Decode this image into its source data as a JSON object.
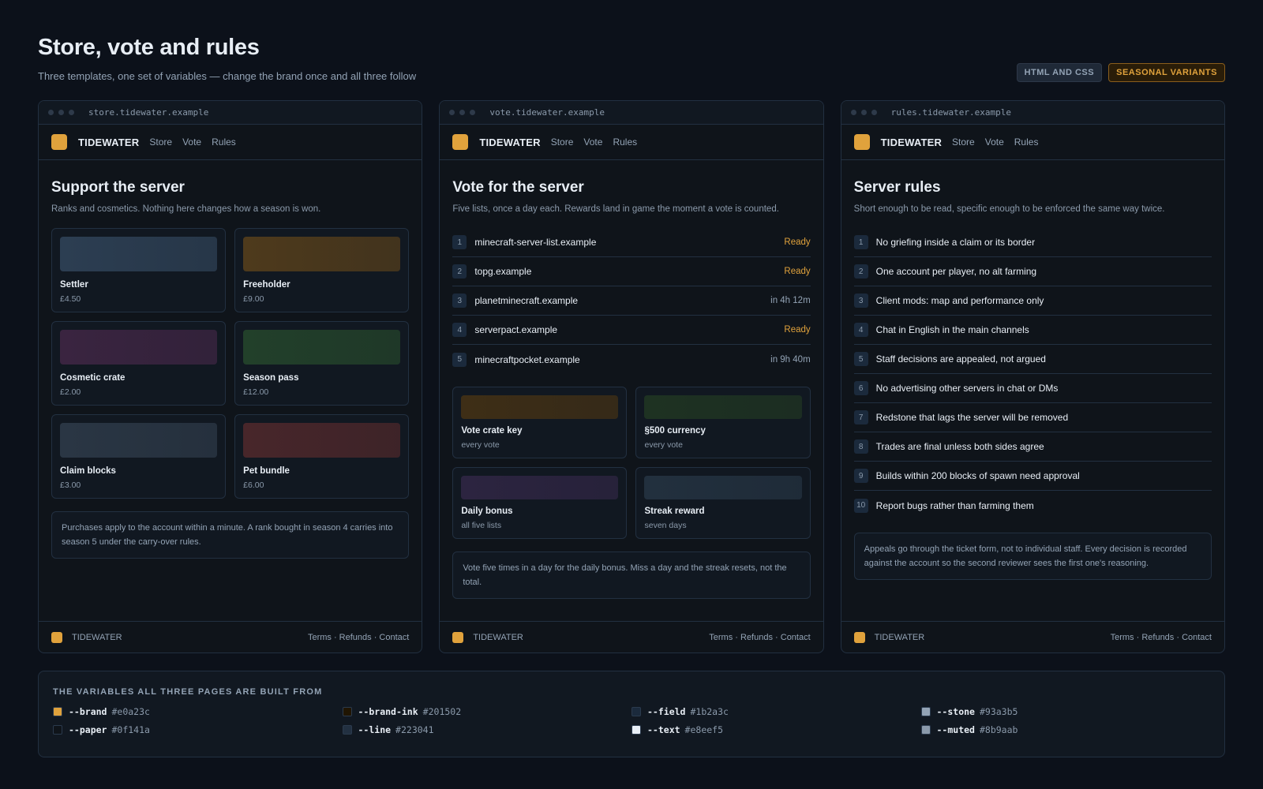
{
  "header": {
    "title": "Store, vote and rules",
    "subtitle": "Three templates, one set of variables — change the brand once and all three follow"
  },
  "badges": [
    "HTML AND CSS",
    "SEASONAL VARIANTS"
  ],
  "brand": {
    "name": "TIDEWATER",
    "color": "#e0a23c"
  },
  "nav_links": [
    "Store",
    "Vote",
    "Rules"
  ],
  "footer_links": "Terms · Refunds · Contact",
  "store": {
    "url": "store.tidewater.example",
    "title": "Support the server",
    "subtitle": "Ranks and cosmetics. Nothing here changes how a season is won.",
    "items": [
      {
        "name": "Settler",
        "price": "£4.50",
        "color": "#2c3e52"
      },
      {
        "name": "Freeholder",
        "price": "£9.00",
        "color": "#4e3a1c"
      },
      {
        "name": "Cosmetic crate",
        "price": "£2.00",
        "color": "#3a2440"
      },
      {
        "name": "Season pass",
        "price": "£12.00",
        "color": "#22402a"
      },
      {
        "name": "Claim blocks",
        "price": "£3.00",
        "color": "#2a3644"
      },
      {
        "name": "Pet bundle",
        "price": "£6.00",
        "color": "#48262a"
      }
    ],
    "note": "Purchases apply to the account within a minute. A rank bought in season 4 carries into season 5 under the carry-over rules."
  },
  "vote": {
    "url": "vote.tidewater.example",
    "title": "Vote for the server",
    "subtitle": "Five lists, once a day each. Rewards land in game the moment a vote is counted.",
    "sites": [
      {
        "num": "1",
        "name": "minecraft-server-list.example",
        "status": "Ready",
        "ready": true
      },
      {
        "num": "2",
        "name": "topg.example",
        "status": "Ready",
        "ready": true
      },
      {
        "num": "3",
        "name": "planetminecraft.example",
        "status": "in 4h 12m",
        "ready": false
      },
      {
        "num": "4",
        "name": "serverpact.example",
        "status": "Ready",
        "ready": true
      },
      {
        "num": "5",
        "name": "minecraftpocket.example",
        "status": "in 9h 40m",
        "ready": false
      }
    ],
    "rewards": [
      {
        "name": "Vote crate key",
        "meta": "every vote",
        "color": "#3e2e16"
      },
      {
        "name": "§500 currency",
        "meta": "every vote",
        "color": "#1e3222"
      },
      {
        "name": "Daily bonus",
        "meta": "all five lists",
        "color": "#2c2440"
      },
      {
        "name": "Streak reward",
        "meta": "seven days",
        "color": "#22303e"
      }
    ],
    "note": "Vote five times in a day for the daily bonus. Miss a day and the streak resets, not the total."
  },
  "rules": {
    "url": "rules.tidewater.example",
    "title": "Server rules",
    "subtitle": "Short enough to be read, specific enough to be enforced the same way twice.",
    "items": [
      {
        "num": "1",
        "text": "No griefing inside a claim or its border"
      },
      {
        "num": "2",
        "text": "One account per player, no alt farming"
      },
      {
        "num": "3",
        "text": "Client mods: map and performance only"
      },
      {
        "num": "4",
        "text": "Chat in English in the main channels"
      },
      {
        "num": "5",
        "text": "Staff decisions are appealed, not argued"
      },
      {
        "num": "6",
        "text": "No advertising other servers in chat or DMs"
      },
      {
        "num": "7",
        "text": "Redstone that lags the server will be removed"
      },
      {
        "num": "8",
        "text": "Trades are final unless both sides agree"
      },
      {
        "num": "9",
        "text": "Builds within 200 blocks of spawn need approval"
      },
      {
        "num": "10",
        "text": "Report bugs rather than farming them"
      }
    ],
    "note": "Appeals go through the ticket form, not to individual staff. Every decision is recorded against the account so the second reviewer sees the first one's reasoning."
  },
  "variables": {
    "title": "THE VARIABLES ALL THREE PAGES ARE BUILT FROM",
    "items": [
      {
        "name": "--brand",
        "hex": "#e0a23c"
      },
      {
        "name": "--brand-ink",
        "hex": "#201502"
      },
      {
        "name": "--field",
        "hex": "#1b2a3c"
      },
      {
        "name": "--stone",
        "hex": "#93a3b5"
      },
      {
        "name": "--paper",
        "hex": "#0f141a"
      },
      {
        "name": "--line",
        "hex": "#223041"
      },
      {
        "name": "--text",
        "hex": "#e8eef5"
      },
      {
        "name": "--muted",
        "hex": "#8b9aab"
      }
    ]
  }
}
